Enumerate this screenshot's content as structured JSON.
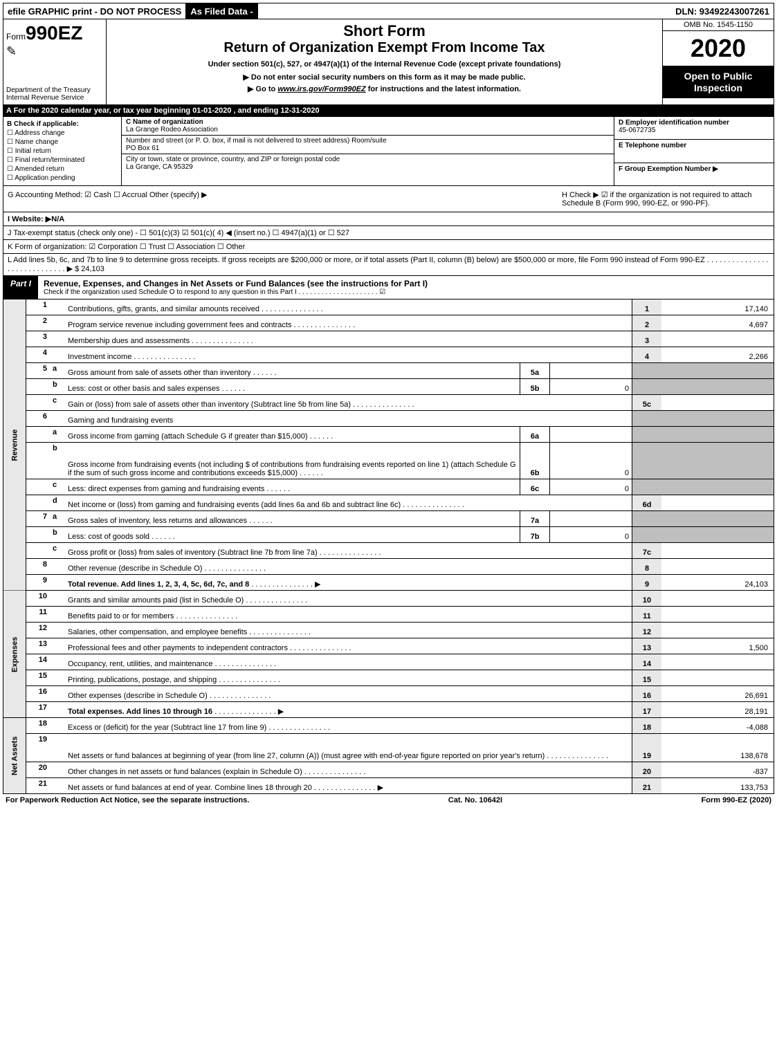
{
  "topbar": {
    "efile": "efile GRAPHIC print - DO NOT PROCESS",
    "asfiled": "As Filed Data -",
    "dln": "DLN: 93492243007261"
  },
  "header": {
    "formword": "Form",
    "formnum": "990EZ",
    "dept1": "Department of the Treasury",
    "dept2": "Internal Revenue Service",
    "short": "Short Form",
    "return": "Return of Organization Exempt From Income Tax",
    "under": "Under section 501(c), 527, or 4947(a)(1) of the Internal Revenue Code (except private foundations)",
    "arrow1": "▶ Do not enter social security numbers on this form as it may be made public.",
    "arrow2_pre": "▶ Go to ",
    "arrow2_link": "www.irs.gov/Form990EZ",
    "arrow2_post": " for instructions and the latest information.",
    "omb": "OMB No. 1545-1150",
    "year": "2020",
    "open": "Open to Public Inspection"
  },
  "rowA": "A  For the 2020 calendar year, or tax year beginning 01-01-2020 , and ending 12-31-2020",
  "boxB": {
    "title": "B  Check if applicable:",
    "opts": [
      "☐ Address change",
      "☐ Name change",
      "☐ Initial return",
      "☐ Final return/terminated",
      "☐ Amended return",
      "☐ Application pending"
    ]
  },
  "boxC": {
    "c_lbl": "C Name of organization",
    "c_val": "La Grange Rodeo Association",
    "addr_lbl": "Number and street (or P. O. box, if mail is not delivered to street address)   Room/suite",
    "addr_val": "PO Box 61",
    "city_lbl": "City or town, state or province, country, and ZIP or foreign postal code",
    "city_val": "La Grange, CA  95329"
  },
  "boxD": {
    "d_lbl": "D Employer identification number",
    "d_val": "45-0672735",
    "e_lbl": "E Telephone number",
    "e_val": "",
    "f_lbl": "F Group Exemption Number   ▶",
    "f_val": ""
  },
  "rowG": {
    "left": "G Accounting Method:   ☑ Cash   ☐ Accrual   Other (specify) ▶",
    "right": "H   Check ▶   ☑ if the organization is not required to attach Schedule B (Form 990, 990-EZ, or 990-PF)."
  },
  "rowI": "I Website: ▶N/A",
  "rowJ": "J Tax-exempt status (check only one) - ☐ 501(c)(3) ☑ 501(c)( 4) ◀ (insert no.) ☐ 4947(a)(1) or ☐ 527",
  "rowK": "K Form of organization:   ☑ Corporation   ☐ Trust   ☐ Association   ☐ Other",
  "rowL": "L Add lines 5b, 6c, and 7b to line 9 to determine gross receipts. If gross receipts are $200,000 or more, or if total assets (Part II, column (B) below) are $500,000 or more, file Form 990 instead of Form 990-EZ  .  .  .  .  .  .  .  .  .  .  .  .  .  .  .  .  .  .  .  .  .  .  .  .  .  .  .  .  .  ▶ $ 24,103",
  "partI": {
    "tag": "Part I",
    "title": "Revenue, Expenses, and Changes in Net Assets or Fund Balances (see the instructions for Part I)",
    "sub": "Check if the organization used Schedule O to respond to any question in this Part I .  .  .  .  .  .  .  .  .  .  .  .  .  .  .  .  .  .  .  .  .  ☑"
  },
  "sections": {
    "revenue": "Revenue",
    "expenses": "Expenses",
    "netassets": "Net Assets"
  },
  "lines": [
    {
      "n": "1",
      "d": "Contributions, gifts, grants, and similar amounts received",
      "box": "1",
      "val": "17,140"
    },
    {
      "n": "2",
      "d": "Program service revenue including government fees and contracts",
      "box": "2",
      "val": "4,697"
    },
    {
      "n": "3",
      "d": "Membership dues and assessments",
      "box": "3",
      "val": ""
    },
    {
      "n": "4",
      "d": "Investment income",
      "box": "4",
      "val": "2,266"
    },
    {
      "n": "5a",
      "d": "Gross amount from sale of assets other than inventory",
      "mid": "5a",
      "midval": ""
    },
    {
      "n": "b",
      "d": "Less: cost or other basis and sales expenses",
      "mid": "5b",
      "midval": "0"
    },
    {
      "n": "c",
      "d": "Gain or (loss) from sale of assets other than inventory (Subtract line 5b from line 5a)",
      "box": "5c",
      "val": ""
    },
    {
      "n": "6",
      "d": "Gaming and fundraising events",
      "noval": true
    },
    {
      "n": "a",
      "d": "Gross income from gaming (attach Schedule G if greater than $15,000)",
      "mid": "6a",
      "midval": ""
    },
    {
      "n": "b",
      "d": "Gross income from fundraising events (not including $                       of contributions from fundraising events reported on line 1) (attach Schedule G if the sum of such gross income and contributions exceeds $15,000)",
      "mid": "6b",
      "midval": "0",
      "tall": true
    },
    {
      "n": "c",
      "d": "Less: direct expenses from gaming and fundraising events",
      "mid": "6c",
      "midval": "0"
    },
    {
      "n": "d",
      "d": "Net income or (loss) from gaming and fundraising events (add lines 6a and 6b and subtract line 6c)",
      "box": "6d",
      "val": ""
    },
    {
      "n": "7a",
      "d": "Gross sales of inventory, less returns and allowances",
      "mid": "7a",
      "midval": ""
    },
    {
      "n": "b",
      "d": "Less: cost of goods sold",
      "mid": "7b",
      "midval": "0"
    },
    {
      "n": "c",
      "d": "Gross profit or (loss) from sales of inventory (Subtract line 7b from line 7a)",
      "box": "7c",
      "val": ""
    },
    {
      "n": "8",
      "d": "Other revenue (describe in Schedule O)",
      "box": "8",
      "val": ""
    },
    {
      "n": "9",
      "d": "Total revenue. Add lines 1, 2, 3, 4, 5c, 6d, 7c, and 8",
      "box": "9",
      "val": "24,103",
      "bold": true,
      "arrow": true
    }
  ],
  "exp_lines": [
    {
      "n": "10",
      "d": "Grants and similar amounts paid (list in Schedule O)",
      "box": "10",
      "val": ""
    },
    {
      "n": "11",
      "d": "Benefits paid to or for members",
      "box": "11",
      "val": ""
    },
    {
      "n": "12",
      "d": "Salaries, other compensation, and employee benefits",
      "box": "12",
      "val": ""
    },
    {
      "n": "13",
      "d": "Professional fees and other payments to independent contractors",
      "box": "13",
      "val": "1,500"
    },
    {
      "n": "14",
      "d": "Occupancy, rent, utilities, and maintenance",
      "box": "14",
      "val": ""
    },
    {
      "n": "15",
      "d": "Printing, publications, postage, and shipping",
      "box": "15",
      "val": ""
    },
    {
      "n": "16",
      "d": "Other expenses (describe in Schedule O)",
      "box": "16",
      "val": "26,691"
    },
    {
      "n": "17",
      "d": "Total expenses. Add lines 10 through 16",
      "box": "17",
      "val": "28,191",
      "bold": true,
      "arrow": true
    }
  ],
  "na_lines": [
    {
      "n": "18",
      "d": "Excess or (deficit) for the year (Subtract line 17 from line 9)",
      "box": "18",
      "val": "-4,088"
    },
    {
      "n": "19",
      "d": "Net assets or fund balances at beginning of year (from line 27, column (A)) (must agree with end-of-year figure reported on prior year's return)",
      "box": "19",
      "val": "138,678",
      "tall": true
    },
    {
      "n": "20",
      "d": "Other changes in net assets or fund balances (explain in Schedule O)",
      "box": "20",
      "val": "-837"
    },
    {
      "n": "21",
      "d": "Net assets or fund balances at end of year. Combine lines 18 through 20",
      "box": "21",
      "val": "133,753",
      "arrow": true
    }
  ],
  "footer": {
    "left": "For Paperwork Reduction Act Notice, see the separate instructions.",
    "mid": "Cat. No. 10642I",
    "right": "Form 990-EZ (2020)"
  }
}
